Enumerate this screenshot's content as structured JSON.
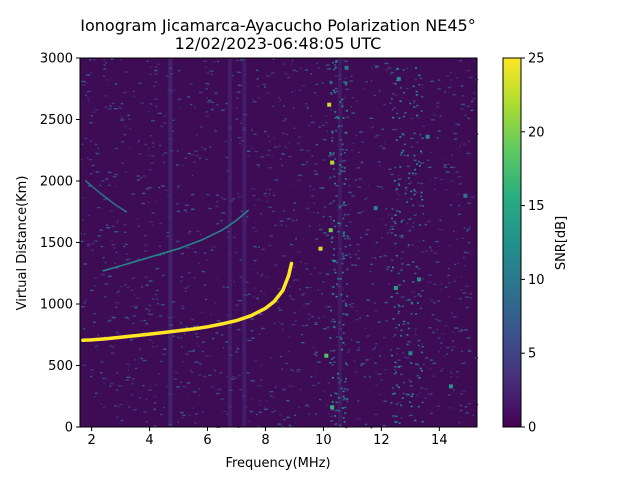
{
  "chart_data": {
    "type": "heatmap",
    "title_line1": "Ionogram Jicamarca-Ayacucho Polarization NE45°",
    "title_line2": "12/02/2023-06:48:05 UTC",
    "xlabel": "Frequency(MHz)",
    "ylabel": "Virtual Distance(Km)",
    "colorbar_label": "SNR[dB]",
    "colormap": "viridis",
    "xlim": [
      1.6,
      15.3
    ],
    "ylim": [
      0,
      3000
    ],
    "clim": [
      0,
      25
    ],
    "x_ticks": [
      "2",
      "4",
      "6",
      "8",
      "10",
      "12",
      "14"
    ],
    "y_ticks": [
      "0",
      "500",
      "1000",
      "1500",
      "2000",
      "2500",
      "3000"
    ],
    "colorbar_ticks": [
      "0",
      "5",
      "10",
      "15",
      "20",
      "25"
    ],
    "grid": false,
    "series": [
      {
        "trace": "strong",
        "snr_db": 25,
        "points": [
          [
            1.7,
            705
          ],
          [
            2.0,
            708
          ],
          [
            2.5,
            718
          ],
          [
            3.0,
            730
          ],
          [
            3.5,
            742
          ],
          [
            4.0,
            755
          ],
          [
            4.5,
            768
          ],
          [
            5.0,
            782
          ],
          [
            5.5,
            797
          ],
          [
            6.0,
            815
          ],
          [
            6.5,
            838
          ],
          [
            7.0,
            865
          ],
          [
            7.5,
            905
          ],
          [
            8.0,
            965
          ],
          [
            8.3,
            1020
          ],
          [
            8.6,
            1110
          ],
          [
            8.8,
            1230
          ],
          [
            8.9,
            1330
          ]
        ]
      },
      {
        "trace": "faint",
        "snr_db": 11,
        "points": [
          [
            2.4,
            1270
          ],
          [
            3.0,
            1310
          ],
          [
            4.0,
            1380
          ],
          [
            5.0,
            1450
          ],
          [
            5.8,
            1520
          ],
          [
            6.5,
            1600
          ],
          [
            7.0,
            1680
          ],
          [
            7.4,
            1760
          ]
        ]
      },
      {
        "trace": "faint",
        "snr_db": 9,
        "points": [
          [
            1.8,
            2000
          ],
          [
            2.3,
            1900
          ],
          [
            2.8,
            1810
          ],
          [
            3.2,
            1750
          ]
        ]
      }
    ],
    "speckle": [
      {
        "x": 10.2,
        "y": 2620,
        "snr_db": 23
      },
      {
        "x": 10.3,
        "y": 2150,
        "snr_db": 22
      },
      {
        "x": 10.25,
        "y": 1600,
        "snr_db": 20
      },
      {
        "x": 9.9,
        "y": 1450,
        "snr_db": 23
      },
      {
        "x": 10.1,
        "y": 580,
        "snr_db": 18
      },
      {
        "x": 10.3,
        "y": 160,
        "snr_db": 16
      },
      {
        "x": 12.5,
        "y": 1130,
        "snr_db": 14
      },
      {
        "x": 13.3,
        "y": 1200,
        "snr_db": 12
      },
      {
        "x": 13.0,
        "y": 600,
        "snr_db": 12
      },
      {
        "x": 12.6,
        "y": 2830,
        "snr_db": 12
      },
      {
        "x": 14.4,
        "y": 330,
        "snr_db": 13
      },
      {
        "x": 11.8,
        "y": 1780,
        "snr_db": 11
      },
      {
        "x": 10.8,
        "y": 2920,
        "snr_db": 10
      },
      {
        "x": 13.6,
        "y": 2360,
        "snr_db": 11
      },
      {
        "x": 14.9,
        "y": 1880,
        "snr_db": 10
      }
    ]
  }
}
